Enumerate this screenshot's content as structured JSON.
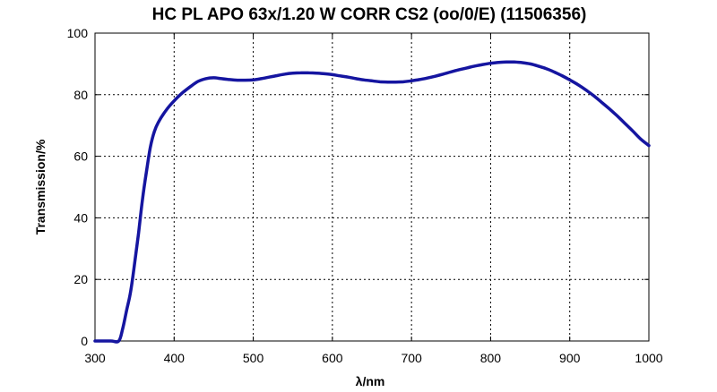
{
  "chart_data": {
    "type": "line",
    "title": "HC PL APO 63x/1.20 W CORR CS2 (oo/0/E) (11506356)",
    "xlabel": "λ/nm",
    "ylabel": "Transmission/%",
    "xlim": [
      300,
      1000
    ],
    "ylim": [
      0,
      100
    ],
    "xticks": [
      300,
      400,
      500,
      600,
      700,
      800,
      900,
      1000
    ],
    "yticks": [
      0,
      20,
      40,
      60,
      80,
      100
    ],
    "grid": true,
    "series": [
      {
        "color": "#1515a0",
        "x": [
          300,
          320,
          330,
          335,
          340,
          345,
          350,
          355,
          360,
          365,
          370,
          375,
          380,
          390,
          400,
          410,
          420,
          430,
          440,
          450,
          460,
          470,
          480,
          490,
          500,
          510,
          520,
          530,
          540,
          550,
          560,
          570,
          580,
          590,
          600,
          610,
          620,
          630,
          640,
          650,
          660,
          670,
          680,
          690,
          700,
          710,
          720,
          730,
          740,
          750,
          760,
          770,
          780,
          790,
          800,
          810,
          820,
          830,
          840,
          850,
          860,
          870,
          880,
          890,
          900,
          910,
          920,
          930,
          940,
          950,
          960,
          970,
          980,
          990,
          1000
        ],
        "y": [
          0,
          0,
          0,
          4,
          10,
          16,
          25,
          35,
          46,
          55,
          63,
          68,
          71,
          75,
          78,
          80.5,
          82.5,
          84.3,
          85.2,
          85.5,
          85.2,
          84.9,
          84.7,
          84.7,
          84.8,
          85.2,
          85.7,
          86.2,
          86.7,
          87,
          87.1,
          87.1,
          87,
          86.8,
          86.5,
          86.1,
          85.7,
          85.2,
          84.8,
          84.5,
          84.2,
          84.1,
          84.1,
          84.2,
          84.5,
          84.9,
          85.4,
          86,
          86.7,
          87.4,
          88.1,
          88.7,
          89.3,
          89.8,
          90.2,
          90.5,
          90.6,
          90.6,
          90.4,
          90,
          89.3,
          88.5,
          87.4,
          86.2,
          84.8,
          83.3,
          81.6,
          79.7,
          77.6,
          75.4,
          73.1,
          70.6,
          68.1,
          65.5,
          63.5
        ]
      }
    ]
  }
}
